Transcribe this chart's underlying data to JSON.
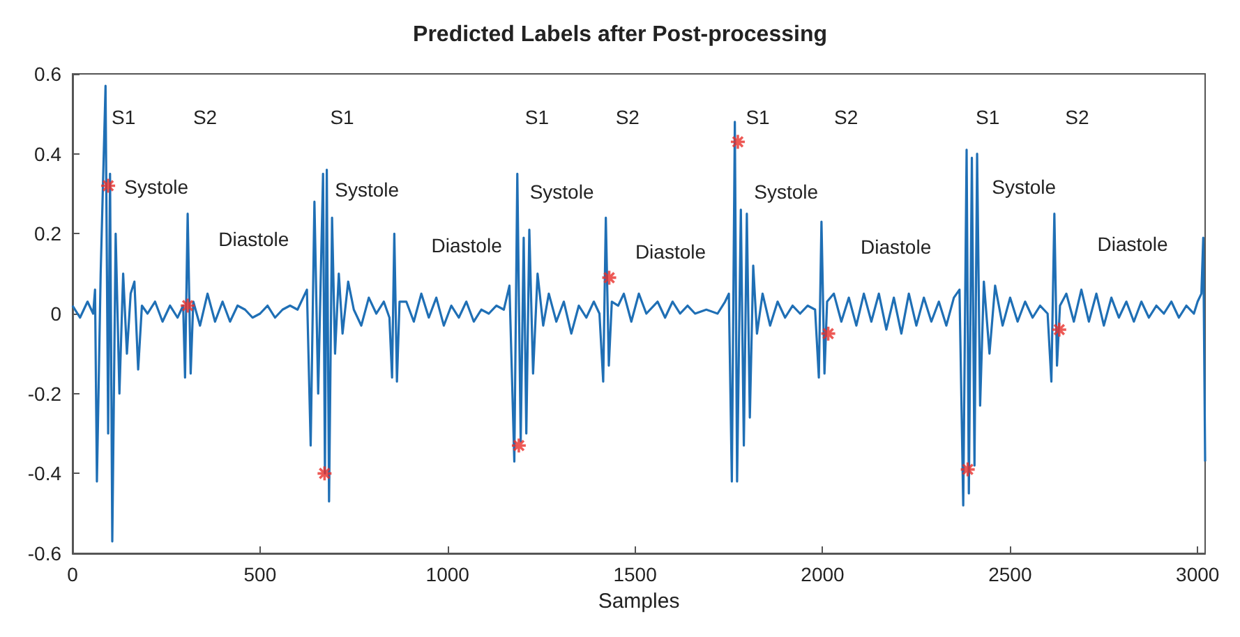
{
  "chart_data": {
    "type": "line",
    "title": "Predicted Labels after Post-processing",
    "xlabel": "Samples",
    "xlim": [
      0,
      3020
    ],
    "ylim": [
      -0.6,
      0.6
    ],
    "xticks": [
      0,
      500,
      1000,
      1500,
      2000,
      2500,
      3000
    ],
    "yticks": [
      -0.6,
      -0.4,
      -0.2,
      0,
      0.2,
      0.4,
      0.6
    ],
    "grid": false,
    "marker": "none",
    "line_style": "solid",
    "series": [
      {
        "color": "#1f6fb5",
        "x": [
          0,
          20,
          40,
          55,
          60,
          65,
          75,
          88,
          95,
          100,
          106,
          115,
          125,
          135,
          145,
          155,
          165,
          175,
          185,
          200,
          220,
          240,
          260,
          280,
          295,
          300,
          307,
          315,
          322,
          340,
          360,
          380,
          400,
          420,
          440,
          460,
          480,
          500,
          520,
          540,
          560,
          580,
          600,
          625,
          635,
          645,
          655,
          668,
          673,
          678,
          684,
          692,
          700,
          710,
          720,
          735,
          750,
          770,
          790,
          810,
          830,
          845,
          852,
          858,
          865,
          872,
          890,
          910,
          930,
          950,
          970,
          990,
          1010,
          1030,
          1050,
          1070,
          1090,
          1110,
          1130,
          1150,
          1165,
          1178,
          1186,
          1195,
          1203,
          1210,
          1218,
          1228,
          1240,
          1255,
          1270,
          1290,
          1310,
          1330,
          1350,
          1370,
          1390,
          1405,
          1415,
          1422,
          1430,
          1438,
          1455,
          1470,
          1490,
          1510,
          1530,
          1560,
          1580,
          1600,
          1620,
          1640,
          1660,
          1690,
          1720,
          1740,
          1750,
          1758,
          1766,
          1772,
          1782,
          1790,
          1798,
          1806,
          1815,
          1825,
          1840,
          1860,
          1880,
          1900,
          1920,
          1940,
          1960,
          1980,
          1990,
          1997,
          2005,
          2012,
          2030,
          2050,
          2070,
          2090,
          2110,
          2130,
          2150,
          2170,
          2190,
          2210,
          2230,
          2250,
          2270,
          2290,
          2310,
          2330,
          2350,
          2365,
          2375,
          2384,
          2390,
          2398,
          2405,
          2412,
          2420,
          2430,
          2445,
          2460,
          2480,
          2500,
          2520,
          2540,
          2560,
          2580,
          2600,
          2610,
          2618,
          2625,
          2633,
          2650,
          2670,
          2690,
          2710,
          2730,
          2750,
          2770,
          2790,
          2810,
          2830,
          2850,
          2870,
          2890,
          2910,
          2930,
          2950,
          2970,
          2990,
          3000,
          3010,
          3015,
          3020
        ],
        "values": [
          0.02,
          -0.01,
          0.03,
          0,
          0.06,
          -0.42,
          0.1,
          0.57,
          -0.3,
          0.35,
          -0.57,
          0.2,
          -0.2,
          0.1,
          -0.1,
          0.05,
          0.08,
          -0.14,
          0.02,
          0,
          0.03,
          -0.02,
          0.02,
          -0.01,
          0.02,
          -0.16,
          0.25,
          -0.15,
          0.03,
          -0.03,
          0.05,
          -0.02,
          0.03,
          -0.02,
          0.02,
          0.01,
          -0.01,
          0,
          0.02,
          -0.01,
          0.01,
          0.02,
          0.01,
          0.06,
          -0.33,
          0.28,
          -0.2,
          0.35,
          -0.4,
          0.36,
          -0.47,
          0.24,
          -0.1,
          0.1,
          -0.05,
          0.08,
          0.01,
          -0.03,
          0.04,
          0,
          0.03,
          -0.01,
          -0.16,
          0.2,
          -0.17,
          0.03,
          0.03,
          -0.02,
          0.05,
          -0.01,
          0.04,
          -0.03,
          0.02,
          -0.01,
          0.03,
          -0.02,
          0.01,
          0,
          0.02,
          0.01,
          0.07,
          -0.37,
          0.35,
          -0.32,
          0.19,
          -0.3,
          0.21,
          -0.15,
          0.1,
          -0.03,
          0.05,
          -0.02,
          0.03,
          -0.05,
          0.02,
          -0.01,
          0.03,
          0,
          -0.17,
          0.24,
          -0.13,
          0.03,
          0.02,
          0.05,
          -0.02,
          0.05,
          0,
          0.03,
          -0.01,
          0.03,
          0,
          0.02,
          0,
          0.01,
          0,
          0.03,
          0.05,
          -0.42,
          0.48,
          -0.42,
          0.26,
          -0.33,
          0.25,
          -0.26,
          0.12,
          -0.05,
          0.05,
          -0.03,
          0.03,
          -0.01,
          0.02,
          0,
          0.02,
          0.01,
          -0.16,
          0.23,
          -0.15,
          0.03,
          0.05,
          -0.02,
          0.04,
          -0.03,
          0.05,
          -0.02,
          0.05,
          -0.04,
          0.04,
          -0.05,
          0.05,
          -0.03,
          0.04,
          -0.02,
          0.03,
          -0.03,
          0.04,
          0.06,
          -0.48,
          0.41,
          -0.45,
          0.39,
          -0.38,
          0.4,
          -0.23,
          0.08,
          -0.1,
          0.07,
          -0.03,
          0.04,
          -0.02,
          0.03,
          -0.01,
          0.02,
          0,
          -0.17,
          0.25,
          -0.13,
          0.02,
          0.05,
          -0.02,
          0.06,
          -0.02,
          0.05,
          -0.03,
          0.04,
          -0.01,
          0.03,
          -0.02,
          0.03,
          -0.01,
          0.02,
          0,
          0.03,
          -0.01,
          0.02,
          0,
          0.03,
          0.05,
          0.19,
          -0.37
        ]
      },
      {
        "type": "scatter",
        "color": "#e8302a",
        "marker": "cross",
        "x": [
          95,
          307,
          672,
          1190,
          1431,
          1774,
          2015,
          2387,
          2631
        ],
        "values": [
          0.32,
          0.02,
          -0.4,
          -0.33,
          0.09,
          0.43,
          -0.05,
          -0.39,
          -0.04
        ]
      }
    ],
    "annotations": [
      "S1",
      "S2",
      "S1",
      "S1",
      "S2",
      "S1",
      "S2",
      "S1",
      "S2",
      "Systole",
      "Systole",
      "Systole",
      "Systole",
      "Systole",
      "Diastole",
      "Diastole",
      "Diastole",
      "Diastole",
      "Diastole"
    ]
  }
}
